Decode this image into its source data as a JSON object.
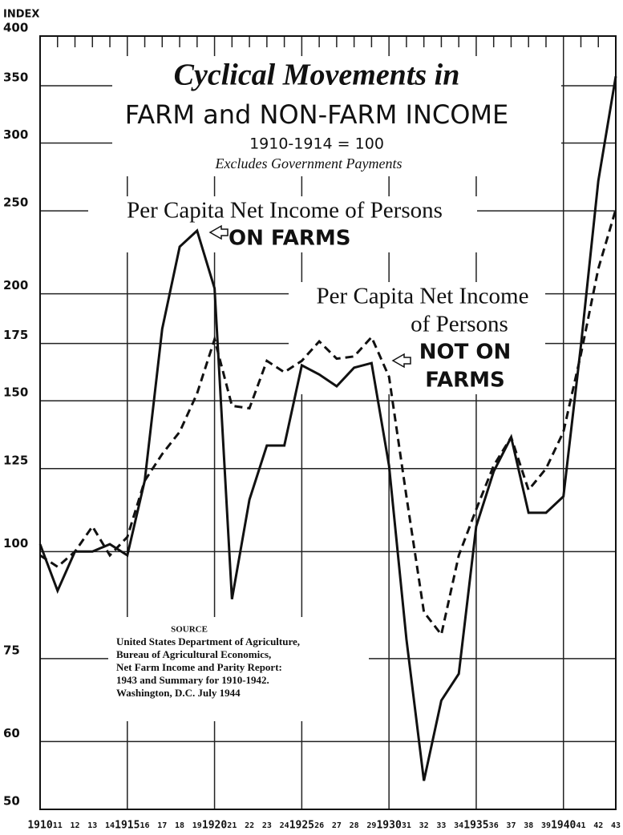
{
  "chart_data": {
    "type": "line",
    "y_label": "INDEX",
    "title": [
      "Cyclical Movements in",
      "FARM and NON-FARM INCOME"
    ],
    "subtitle": [
      "1910-1914 = 100",
      "Excludes Government Payments"
    ],
    "source": [
      "SOURCE",
      "United States Department of Agriculture,",
      "Bureau of Agricultural Economics,",
      "Net Farm Income and Parity Report:",
      "1943 and Summary for 1910-1942.",
      "Washington, D.C.    July 1944"
    ],
    "log_scale": true,
    "grid": true,
    "ylim": [
      50,
      400
    ],
    "yticks": [
      50,
      60,
      75,
      100,
      125,
      150,
      175,
      200,
      250,
      300,
      350,
      400
    ],
    "xlim": [
      1910,
      1943
    ],
    "x": [
      1910,
      1911,
      1912,
      1913,
      1914,
      1915,
      1916,
      1917,
      1918,
      1919,
      1920,
      1921,
      1922,
      1923,
      1924,
      1925,
      1926,
      1927,
      1928,
      1929,
      1930,
      1931,
      1932,
      1933,
      1934,
      1935,
      1936,
      1937,
      1938,
      1939,
      1940,
      1941,
      1942,
      1943
    ],
    "xticks": [
      1910,
      {
        "value": 1911,
        "label": "11"
      },
      {
        "value": 1912,
        "label": "12"
      },
      {
        "value": 1913,
        "label": "13"
      },
      {
        "value": 1914,
        "label": "14"
      },
      1915,
      {
        "value": 1916,
        "label": "16"
      },
      {
        "value": 1917,
        "label": "17"
      },
      {
        "value": 1918,
        "label": "18"
      },
      {
        "value": 1919,
        "label": "19"
      },
      1920,
      {
        "value": 1921,
        "label": "21"
      },
      {
        "value": 1922,
        "label": "22"
      },
      {
        "value": 1923,
        "label": "23"
      },
      {
        "value": 1924,
        "label": "24"
      },
      1925,
      {
        "value": 1926,
        "label": "26"
      },
      {
        "value": 1927,
        "label": "27"
      },
      {
        "value": 1928,
        "label": "28"
      },
      {
        "value": 1929,
        "label": "29"
      },
      1930,
      {
        "value": 1931,
        "label": "31"
      },
      {
        "value": 1932,
        "label": "32"
      },
      {
        "value": 1933,
        "label": "33"
      },
      {
        "value": 1934,
        "label": "34"
      },
      1935,
      {
        "value": 1936,
        "label": "36"
      },
      {
        "value": 1937,
        "label": "37"
      },
      {
        "value": 1938,
        "label": "38"
      },
      {
        "value": 1939,
        "label": "39"
      },
      1940,
      {
        "value": 1941,
        "label": "41"
      },
      {
        "value": 1942,
        "label": "42"
      },
      {
        "value": 1943,
        "label": "43"
      }
    ],
    "series": [
      {
        "label": [
          "Per Capita Net Income of Persons",
          "ON FARMS"
        ],
        "color": "#111",
        "dash": false,
        "values": [
          102,
          90,
          100,
          100,
          102,
          99,
          121,
          182,
          227,
          237,
          203,
          88,
          115,
          133,
          133,
          165,
          161,
          156,
          164,
          166,
          126,
          79,
          54,
          67,
          72,
          107,
          124,
          136,
          111,
          111,
          116,
          174,
          271,
          359
        ]
      },
      {
        "label": [
          "Per Capita Net Income",
          "of Persons",
          "NOT ON",
          "FARMS"
        ],
        "color": "#111",
        "dash": true,
        "values": [
          99,
          96,
          100,
          107,
          99,
          104,
          121,
          130,
          138,
          153,
          177,
          148,
          147,
          167,
          162,
          167,
          176,
          168,
          169,
          178,
          160,
          116,
          85,
          80,
          99,
          112,
          126,
          136,
          118,
          125,
          138,
          170,
          214,
          251
        ]
      }
    ]
  }
}
